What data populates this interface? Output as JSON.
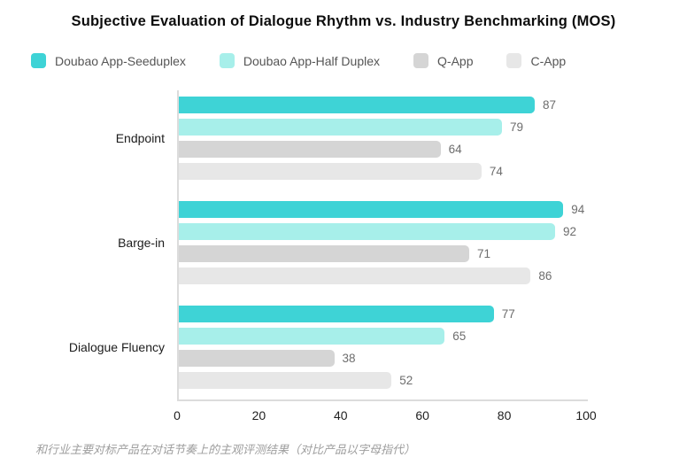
{
  "title": "Subjective Evaluation of Dialogue Rhythm vs. Industry Benchmarking (MOS)",
  "footer": "和行业主要对标产品在对话节奏上的主观评测结果（对比产品以字母指代）",
  "legend": [
    {
      "label": "Doubao App-Seeduplex",
      "color": "#3ED3D6"
    },
    {
      "label": "Doubao App-Half Duplex",
      "color": "#A7EFEA"
    },
    {
      "label": "Q-App",
      "color": "#D5D5D5"
    },
    {
      "label": "C-App",
      "color": "#E7E7E7"
    }
  ],
  "chart_data": {
    "type": "bar",
    "orientation": "horizontal",
    "title": "Subjective Evaluation of Dialogue Rhythm vs. Industry Benchmarking (MOS)",
    "categories": [
      "Endpoint",
      "Barge-in",
      "Dialogue Fluency"
    ],
    "series": [
      {
        "name": "Doubao App-Seeduplex",
        "color": "#3ED3D6",
        "values": [
          87,
          94,
          77
        ]
      },
      {
        "name": "Doubao App-Half Duplex",
        "color": "#A7EFEA",
        "values": [
          79,
          92,
          65
        ]
      },
      {
        "name": "Q-App",
        "color": "#D5D5D5",
        "values": [
          64,
          71,
          38
        ]
      },
      {
        "name": "C-App",
        "color": "#E7E7E7",
        "values": [
          74,
          86,
          52
        ]
      }
    ],
    "value_labels": true,
    "xlim": [
      0,
      100
    ],
    "x_ticks": [
      0,
      20,
      40,
      60,
      80,
      100
    ],
    "grid": false,
    "legend_position": "top"
  }
}
